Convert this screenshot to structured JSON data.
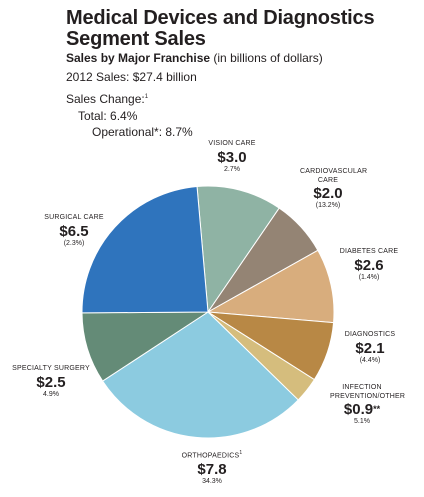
{
  "header": {
    "title_line1": "Medical Devices and Diagnostics",
    "title_line2": "Segment Sales",
    "subtitle_bold": "Sales by Major Franchise",
    "subtitle_normal": " (in billions of dollars)"
  },
  "summary": {
    "sales_2012": "2012 Sales: $27.4 billion",
    "sales_change": "Sales Change:",
    "sales_change_note": "1",
    "total": "Total: 6.4%",
    "operational": "Operational*: 8.7%"
  },
  "chart_data": {
    "type": "pie",
    "title": "Sales by Major Franchise",
    "slices": [
      {
        "name": "VISION CARE",
        "value": 3.0,
        "value_label": "$3.0",
        "detail": "2.7%",
        "color": "#8fb3a4"
      },
      {
        "name": "CARDIOVASCULAR CARE",
        "value": 2.0,
        "value_label": "$2.0",
        "detail": "(13.2%)",
        "color": "#948474"
      },
      {
        "name": "DIABETES CARE",
        "value": 2.6,
        "value_label": "$2.6",
        "detail": "(1.4%)",
        "color": "#d8ad7d"
      },
      {
        "name": "DIAGNOSTICS",
        "value": 2.1,
        "value_label": "$2.1",
        "detail": "(4.4%)",
        "color": "#b88845"
      },
      {
        "name": "INFECTION PREVENTION/OTHER",
        "value": 0.9,
        "value_label": "$0.9",
        "value_suffix": "**",
        "detail": "5.1%",
        "color": "#d5bd7d"
      },
      {
        "name": "ORTHOPAEDICS",
        "name_note": "1",
        "value": 7.8,
        "value_label": "$7.8",
        "detail": "34.3%",
        "color": "#8ccbe0"
      },
      {
        "name": "SPECIALTY SURGERY",
        "value": 2.5,
        "value_label": "$2.5",
        "detail": "4.9%",
        "color": "#648b77"
      },
      {
        "name": "SURGICAL CARE",
        "value": 6.5,
        "value_label": "$6.5",
        "detail": "(2.3%)",
        "color": "#2f74bd"
      }
    ]
  }
}
